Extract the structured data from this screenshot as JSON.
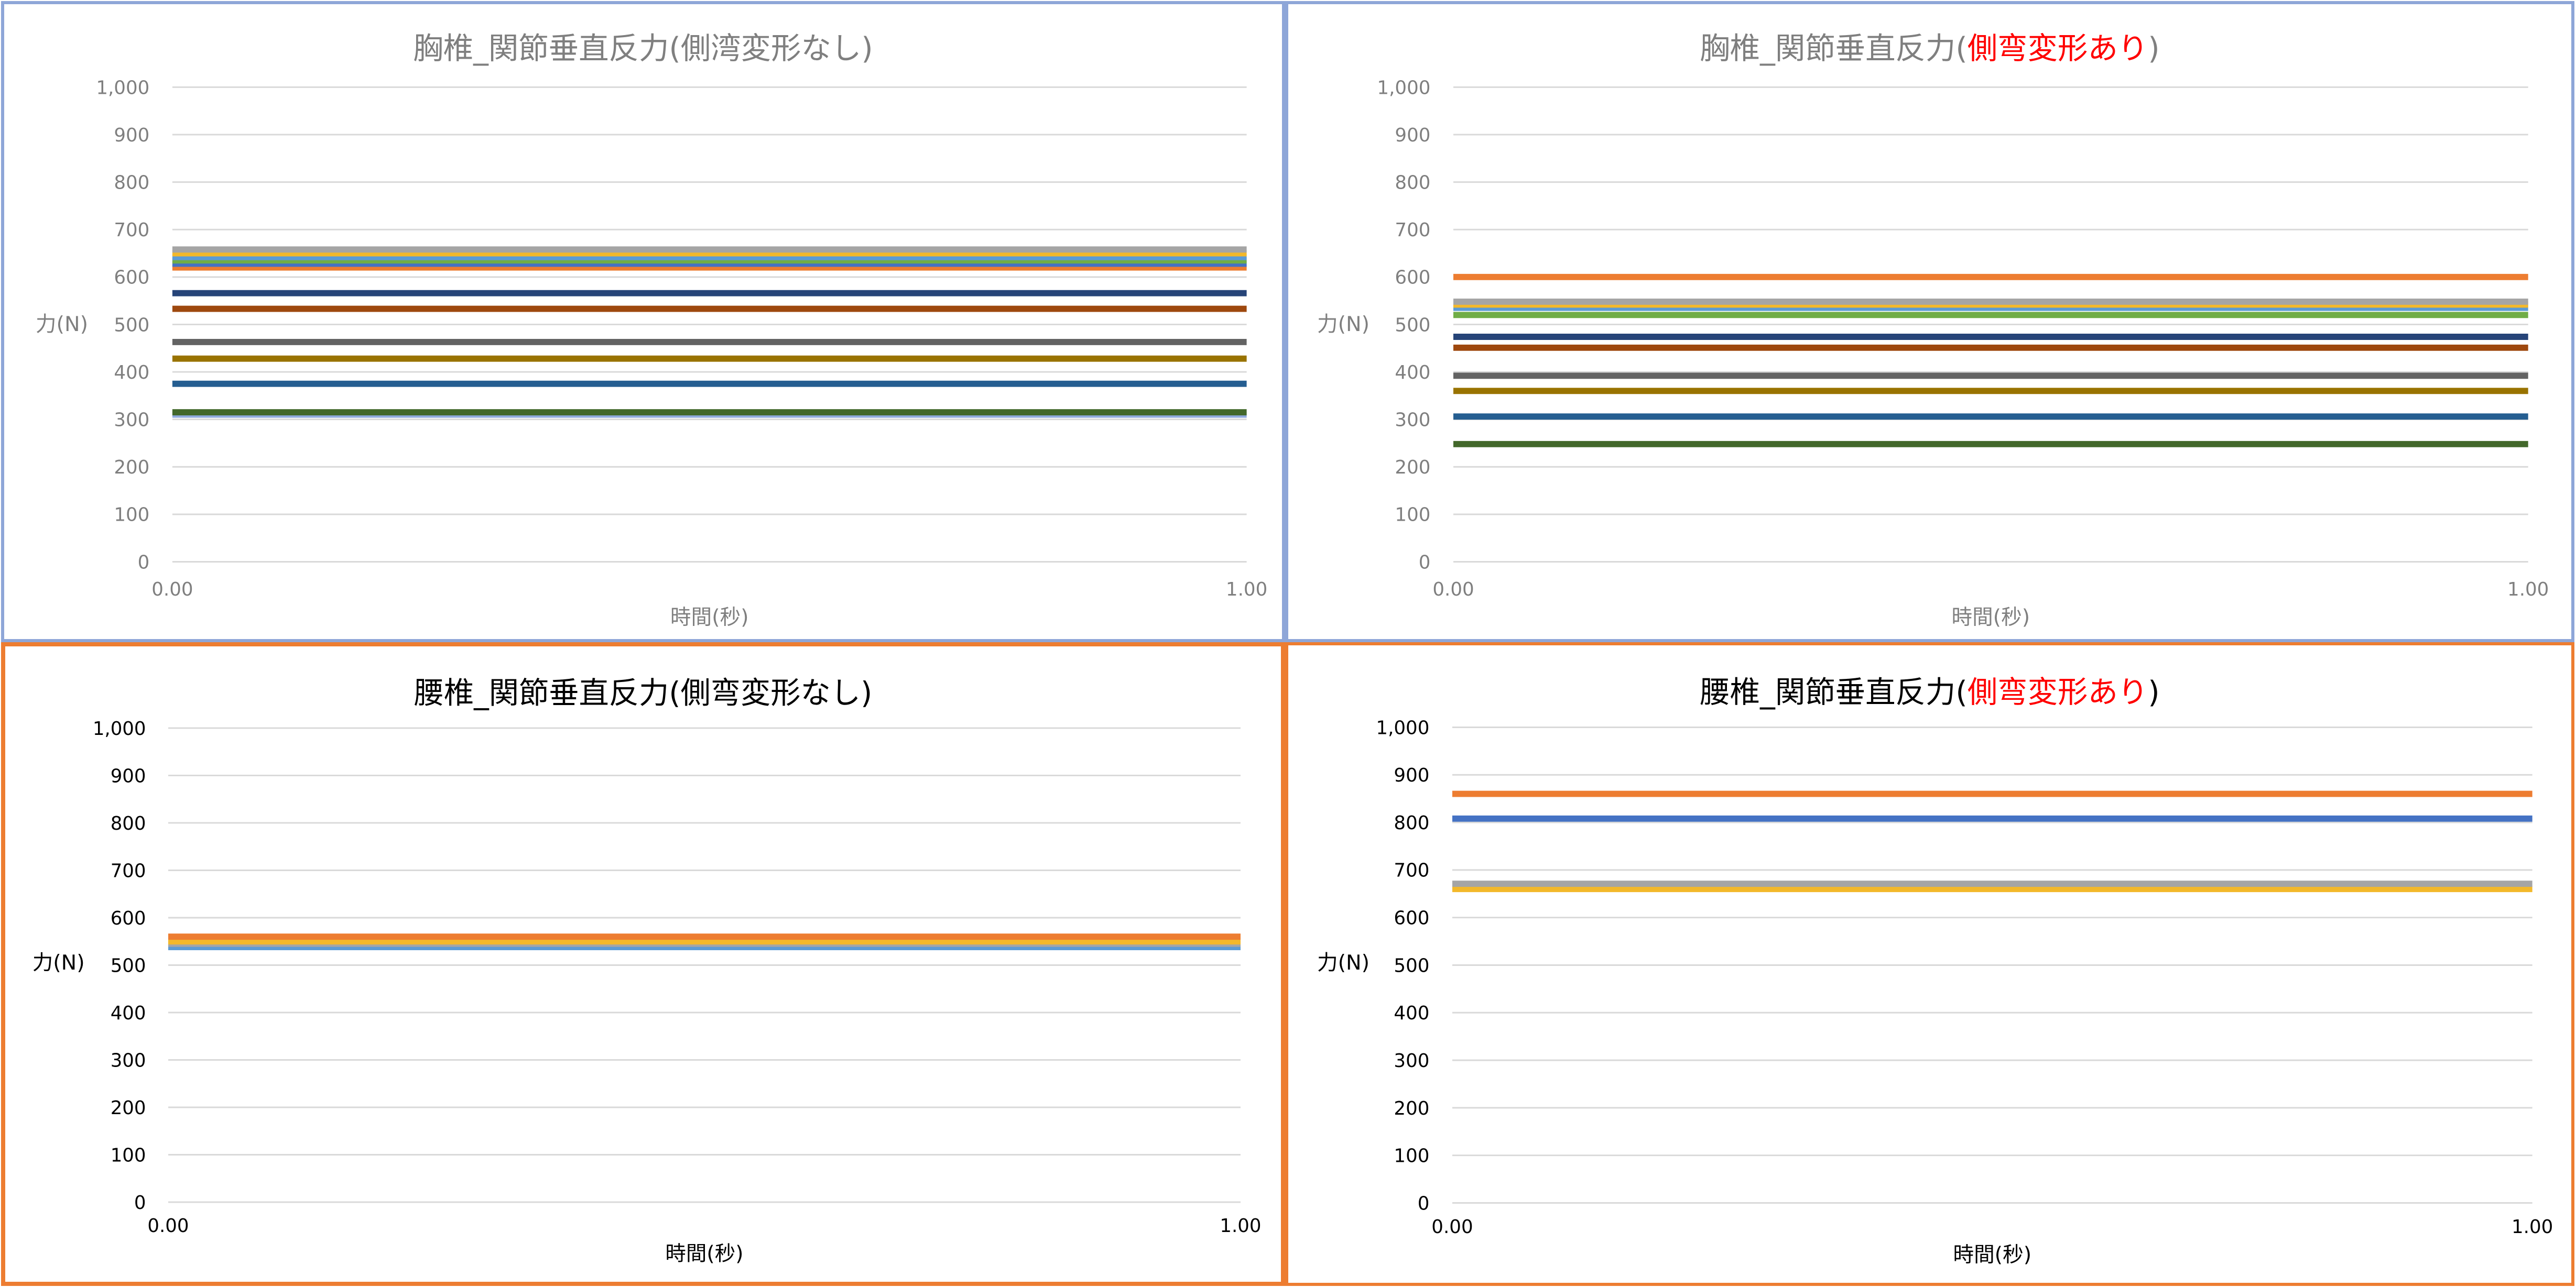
{
  "chart_data": [
    {
      "type": "line",
      "title": "胸椎_関節垂直反力(側湾変形なし)",
      "title_parts": [
        {
          "text": "胸椎_関節垂直反力(側湾変形なし)",
          "color": "#7f7f7f"
        }
      ],
      "xlabel": "時間(秒)",
      "ylabel": "力(N)",
      "x": [
        0,
        1
      ],
      "x_ticks": [
        "0.00",
        "1.00"
      ],
      "y_ticks": [
        "0",
        "100",
        "200",
        "300",
        "400",
        "500",
        "600",
        "700",
        "800",
        "900",
        "1,000"
      ],
      "xlim": [
        0,
        1
      ],
      "ylim": [
        0,
        1000
      ],
      "grid": true,
      "text_color": "#7f7f7f",
      "series": [
        {
          "values": [
            375,
            375
          ],
          "color": "#255e91"
        },
        {
          "values": [
            658,
            658
          ],
          "color": "#a5a5a5"
        },
        {
          "values": [
            650,
            650
          ],
          "color": "#f3b82a"
        },
        {
          "values": [
            642,
            642
          ],
          "color": "#5b9bd5"
        },
        {
          "values": [
            635,
            635
          ],
          "color": "#70ad47"
        },
        {
          "values": [
            628,
            628
          ],
          "color": "#4472c4"
        },
        {
          "values": [
            620,
            620
          ],
          "color": "#ed7d31"
        },
        {
          "values": [
            566,
            566
          ],
          "color": "#264478"
        },
        {
          "values": [
            533,
            533
          ],
          "color": "#9e480e"
        },
        {
          "values": [
            463,
            463
          ],
          "color": "#636363"
        },
        {
          "values": [
            428,
            428
          ],
          "color": "#997300"
        },
        {
          "values": [
            315,
            315
          ],
          "color": "#43682b"
        },
        {
          "values": [
            310,
            310
          ],
          "color": "#8faadc"
        }
      ]
    },
    {
      "type": "line",
      "title": "胸椎_関節垂直反力(側弯変形あり)",
      "title_parts": [
        {
          "text": "胸椎_関節垂直反力(",
          "color": "#7f7f7f"
        },
        {
          "text": "側弯変形あり",
          "color": "#ff0000"
        },
        {
          "text": ")",
          "color": "#7f7f7f"
        }
      ],
      "xlabel": "時間(秒)",
      "ylabel": "力(N)",
      "x": [
        0,
        1
      ],
      "x_ticks": [
        "0.00",
        "1.00"
      ],
      "y_ticks": [
        "0",
        "100",
        "200",
        "300",
        "400",
        "500",
        "600",
        "700",
        "800",
        "900",
        "1,000"
      ],
      "xlim": [
        0,
        1
      ],
      "ylim": [
        0,
        1000
      ],
      "grid": true,
      "text_color": "#7f7f7f",
      "series": [
        {
          "values": [
            600,
            600
          ],
          "color": "#ed7d31"
        },
        {
          "values": [
            548,
            548
          ],
          "color": "#a5a5a5"
        },
        {
          "values": [
            542,
            542
          ],
          "color": "#f3b82a"
        },
        {
          "values": [
            535,
            535
          ],
          "color": "#5b9bd5"
        },
        {
          "values": [
            520,
            520
          ],
          "color": "#70ad47"
        },
        {
          "values": [
            474,
            474
          ],
          "color": "#264478"
        },
        {
          "values": [
            451,
            451
          ],
          "color": "#9e480e"
        },
        {
          "values": [
            392,
            392
          ],
          "color": "#636363"
        },
        {
          "values": [
            360,
            360
          ],
          "color": "#997300"
        },
        {
          "values": [
            306,
            306
          ],
          "color": "#255e91"
        },
        {
          "values": [
            248,
            248
          ],
          "color": "#43682b"
        }
      ]
    },
    {
      "type": "line",
      "title": "腰椎_関節垂直反力(側弯変形なし)",
      "title_parts": [
        {
          "text": "腰椎_関節垂直反力(側弯変形なし)",
          "color": "#000000"
        }
      ],
      "xlabel": "時間(秒)",
      "ylabel": "力(N)",
      "x": [
        0,
        1
      ],
      "x_ticks": [
        "0.00",
        "1.00"
      ],
      "y_ticks": [
        "0",
        "100",
        "200",
        "300",
        "400",
        "500",
        "600",
        "700",
        "800",
        "900",
        "1,000"
      ],
      "xlim": [
        0,
        1
      ],
      "ylim": [
        0,
        1000
      ],
      "grid": true,
      "text_color": "#000000",
      "series": [
        {
          "values": [
            560,
            560
          ],
          "color": "#ed7d31"
        },
        {
          "values": [
            550,
            550
          ],
          "color": "#f3b82a"
        },
        {
          "values": [
            545,
            545
          ],
          "color": "#a5a5a5"
        },
        {
          "values": [
            538,
            538
          ],
          "color": "#5b9bd5"
        }
      ]
    },
    {
      "type": "line",
      "title": "腰椎_関節垂直反力(側弯変形あり)",
      "title_parts": [
        {
          "text": "腰椎_関節垂直反力(",
          "color": "#000000"
        },
        {
          "text": "側弯変形あり",
          "color": "#ff0000"
        },
        {
          "text": ")",
          "color": "#000000"
        }
      ],
      "xlabel": "時間(秒)",
      "ylabel": "力(N)",
      "x": [
        0,
        1
      ],
      "x_ticks": [
        "0.00",
        "1.00"
      ],
      "y_ticks": [
        "0",
        "100",
        "200",
        "300",
        "400",
        "500",
        "600",
        "700",
        "800",
        "900",
        "1,000"
      ],
      "xlim": [
        0,
        1
      ],
      "ylim": [
        0,
        1000
      ],
      "grid": true,
      "text_color": "#000000",
      "series": [
        {
          "values": [
            860,
            860
          ],
          "color": "#ed7d31"
        },
        {
          "values": [
            808,
            808
          ],
          "color": "#4472c4"
        },
        {
          "values": [
            671,
            671
          ],
          "color": "#a5a5a5"
        },
        {
          "values": [
            660,
            660
          ],
          "color": "#f3b82a"
        }
      ]
    }
  ]
}
